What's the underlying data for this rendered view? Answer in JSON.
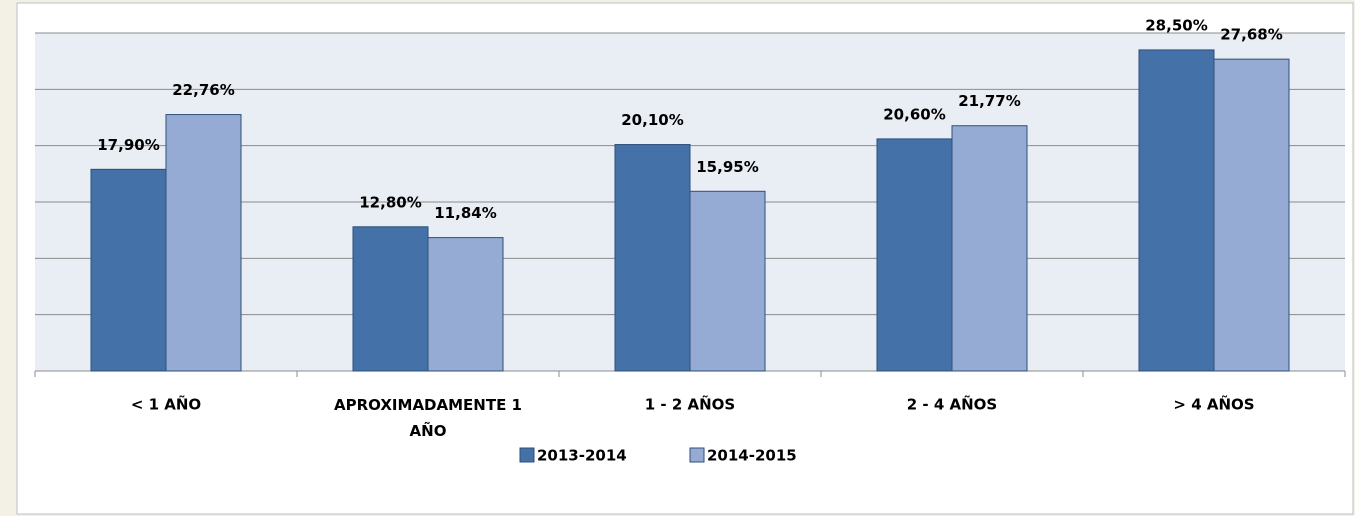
{
  "chart_data": {
    "type": "bar",
    "categories": [
      "< 1 AÑO",
      "APROXIMADAMENTE  1 AÑO",
      "1 - 2 AÑOS",
      "2 - 4 AÑOS",
      "> 4 AÑOS"
    ],
    "series": [
      {
        "name": "2013-2014",
        "color": "#4472a8",
        "values": [
          17.9,
          12.8,
          20.1,
          20.6,
          28.5
        ],
        "value_labels": [
          "17,90%",
          "12,80%",
          "20,10%",
          "20,60%",
          "28,50%"
        ]
      },
      {
        "name": "2014-2015",
        "color": "#95abd3",
        "values": [
          22.76,
          11.84,
          15.95,
          21.77,
          27.68
        ],
        "value_labels": [
          "22,76%",
          "11,84%",
          "15,95%",
          "21,77%",
          "27,68%"
        ]
      }
    ],
    "ylim": [
      0,
      30
    ],
    "yticks": [
      0,
      5,
      10,
      15,
      20,
      25,
      30
    ],
    "grid": true,
    "legend": "bottom"
  }
}
